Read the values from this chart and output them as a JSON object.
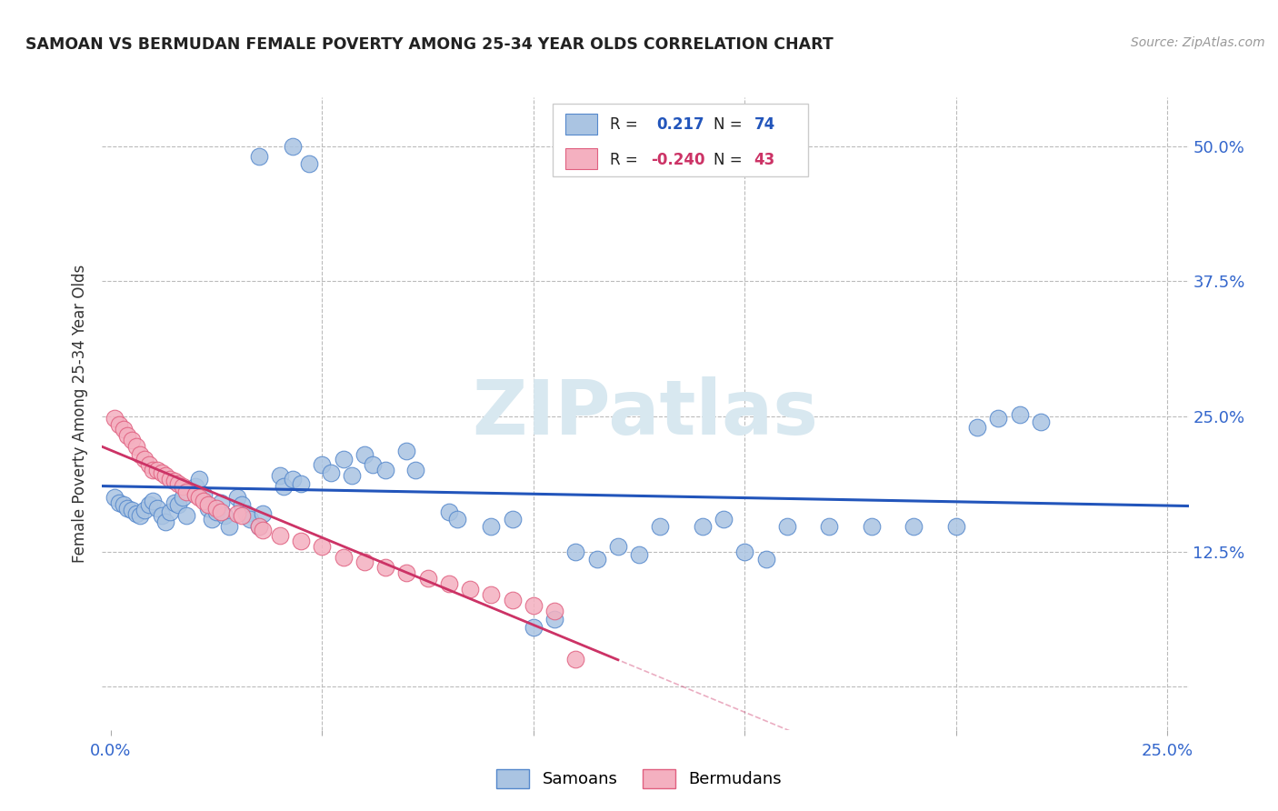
{
  "title": "SAMOAN VS BERMUDAN FEMALE POVERTY AMONG 25-34 YEAR OLDS CORRELATION CHART",
  "source": "Source: ZipAtlas.com",
  "ylabel": "Female Poverty Among 25-34 Year Olds",
  "xlim": [
    -0.002,
    0.255
  ],
  "ylim": [
    -0.04,
    0.545
  ],
  "ytick_right_labels": [
    "50.0%",
    "37.5%",
    "25.0%",
    "12.5%",
    ""
  ],
  "ytick_right_values": [
    0.5,
    0.375,
    0.25,
    0.125,
    0.0
  ],
  "samoan_fill": "#aac4e2",
  "bermudan_fill": "#f4b0c0",
  "samoan_edge": "#5588cc",
  "bermudan_edge": "#e06080",
  "samoan_line_color": "#2255bb",
  "bermudan_line_color": "#cc3366",
  "background_color": "#ffffff",
  "grid_color": "#bbbbbb",
  "watermark_color": "#d8e8f0",
  "title_color": "#222222",
  "axis_label_color": "#333333",
  "tick_label_color": "#3366cc",
  "source_color": "#999999",
  "samoan_x": [
    0.035,
    0.043,
    0.047,
    0.001,
    0.002,
    0.003,
    0.004,
    0.005,
    0.006,
    0.007,
    0.008,
    0.009,
    0.01,
    0.011,
    0.012,
    0.013,
    0.014,
    0.015,
    0.016,
    0.017,
    0.018,
    0.02,
    0.021,
    0.022,
    0.023,
    0.024,
    0.025,
    0.026,
    0.027,
    0.028,
    0.03,
    0.031,
    0.032,
    0.033,
    0.035,
    0.036,
    0.04,
    0.041,
    0.043,
    0.045,
    0.05,
    0.052,
    0.055,
    0.057,
    0.06,
    0.062,
    0.065,
    0.07,
    0.072,
    0.08,
    0.082,
    0.09,
    0.095,
    0.1,
    0.105,
    0.11,
    0.115,
    0.12,
    0.125,
    0.13,
    0.14,
    0.145,
    0.15,
    0.155,
    0.16,
    0.17,
    0.18,
    0.19,
    0.2,
    0.205,
    0.21,
    0.215,
    0.22
  ],
  "samoan_y": [
    0.49,
    0.5,
    0.484,
    0.175,
    0.17,
    0.168,
    0.165,
    0.163,
    0.16,
    0.158,
    0.163,
    0.168,
    0.172,
    0.165,
    0.158,
    0.152,
    0.162,
    0.17,
    0.168,
    0.175,
    0.158,
    0.185,
    0.192,
    0.178,
    0.165,
    0.155,
    0.162,
    0.17,
    0.158,
    0.148,
    0.175,
    0.168,
    0.16,
    0.155,
    0.148,
    0.16,
    0.195,
    0.185,
    0.192,
    0.188,
    0.205,
    0.198,
    0.21,
    0.195,
    0.215,
    0.205,
    0.2,
    0.218,
    0.2,
    0.162,
    0.155,
    0.148,
    0.155,
    0.055,
    0.062,
    0.125,
    0.118,
    0.13,
    0.122,
    0.148,
    0.148,
    0.155,
    0.125,
    0.118,
    0.148,
    0.148,
    0.148,
    0.148,
    0.148,
    0.24,
    0.248,
    0.252,
    0.245
  ],
  "bermudan_x": [
    0.001,
    0.002,
    0.003,
    0.004,
    0.005,
    0.006,
    0.007,
    0.008,
    0.009,
    0.01,
    0.011,
    0.012,
    0.013,
    0.014,
    0.015,
    0.016,
    0.017,
    0.018,
    0.02,
    0.021,
    0.022,
    0.023,
    0.025,
    0.026,
    0.03,
    0.031,
    0.035,
    0.036,
    0.04,
    0.045,
    0.05,
    0.055,
    0.06,
    0.065,
    0.07,
    0.075,
    0.08,
    0.085,
    0.09,
    0.095,
    0.1,
    0.105,
    0.11
  ],
  "bermudan_y": [
    0.248,
    0.242,
    0.238,
    0.232,
    0.228,
    0.222,
    0.215,
    0.21,
    0.205,
    0.2,
    0.2,
    0.198,
    0.195,
    0.192,
    0.19,
    0.188,
    0.185,
    0.18,
    0.178,
    0.175,
    0.172,
    0.168,
    0.165,
    0.162,
    0.16,
    0.158,
    0.148,
    0.145,
    0.14,
    0.135,
    0.13,
    0.12,
    0.115,
    0.11,
    0.105,
    0.1,
    0.095,
    0.09,
    0.085,
    0.08,
    0.075,
    0.07,
    0.025
  ]
}
